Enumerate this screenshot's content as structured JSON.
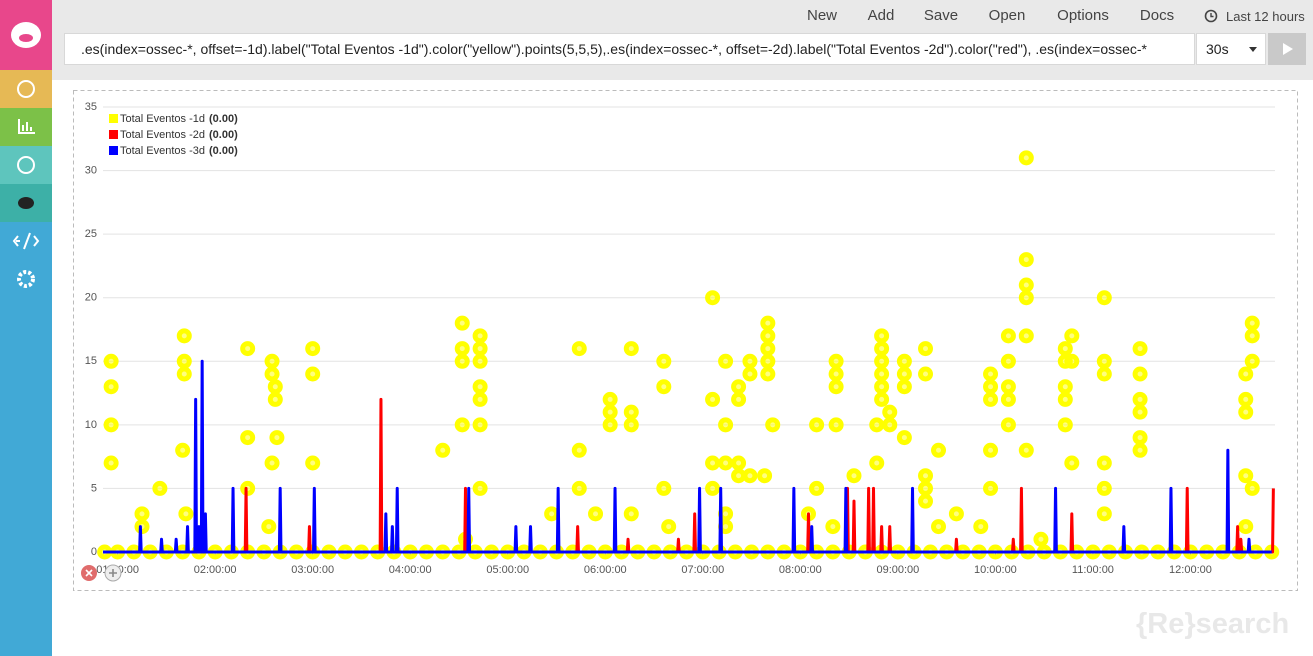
{
  "header": {
    "menu": [
      "New",
      "Add",
      "Save",
      "Open",
      "Options",
      "Docs"
    ],
    "time_range": "Last 12 hours"
  },
  "query": {
    "text": ".es(index=ossec-*, offset=-1d).label(\"Total Eventos -1d\").color(\"yellow\").points(5,5,5),.es(index=ossec-*, offset=-2d).label(\"Total Eventos -2d\").color(\"red\"), .es(index=ossec-*",
    "interval": "30s"
  },
  "watermark": "{Re}search",
  "chart_data": {
    "type": "line",
    "xlim": [
      "00:51:00",
      "12:52:00"
    ],
    "xticks": [
      "01:00:00",
      "02:00:00",
      "03:00:00",
      "04:00:00",
      "05:00:00",
      "06:00:00",
      "07:00:00",
      "08:00:00",
      "09:00:00",
      "10:00:00",
      "11:00:00",
      "12:00:00"
    ],
    "ylim": [
      0,
      35
    ],
    "yticks": [
      0,
      5,
      10,
      15,
      20,
      25,
      30,
      35
    ],
    "grid": true,
    "legend": "top-left",
    "series": [
      {
        "name": "Total Eventos -1d",
        "legend_value": "(0.00)",
        "color": "#ffff00",
        "style": "points",
        "x": [
          "00:56:00",
          "00:56:00",
          "00:56:00",
          "00:56:00",
          "01:15:00",
          "01:15:00",
          "01:26:00",
          "01:40:00",
          "01:41:00",
          "01:41:00",
          "01:41:00",
          "01:42:00",
          "02:20:00",
          "02:20:00",
          "02:20:00",
          "02:33:00",
          "02:35:00",
          "02:35:00",
          "02:35:00",
          "02:37:00",
          "02:37:00",
          "02:38:00",
          "03:00:00",
          "03:00:00",
          "03:00:00",
          "04:20:00",
          "04:32:00",
          "04:32:00",
          "04:32:00",
          "04:32:00",
          "04:34:00",
          "04:43:00",
          "04:43:00",
          "04:43:00",
          "04:43:00",
          "04:43:00",
          "04:43:00",
          "04:43:00",
          "05:27:00",
          "05:44:00",
          "05:44:00",
          "05:44:00",
          "05:54:00",
          "06:03:00",
          "06:03:00",
          "06:03:00",
          "06:16:00",
          "06:16:00",
          "06:16:00",
          "06:16:00",
          "06:36:00",
          "06:36:00",
          "06:36:00",
          "06:39:00",
          "07:06:00",
          "07:06:00",
          "07:06:00",
          "07:06:00",
          "07:14:00",
          "07:14:00",
          "07:14:00",
          "07:14:00",
          "07:14:00",
          "07:22:00",
          "07:22:00",
          "07:22:00",
          "07:22:00",
          "07:29:00",
          "07:29:00",
          "07:29:00",
          "07:38:00",
          "07:40:00",
          "07:40:00",
          "07:40:00",
          "07:40:00",
          "07:40:00",
          "07:43:00",
          "08:05:00",
          "08:10:00",
          "08:10:00",
          "08:20:00",
          "08:22:00",
          "08:22:00",
          "08:22:00",
          "08:22:00",
          "08:33:00",
          "08:47:00",
          "08:47:00",
          "08:50:00",
          "08:50:00",
          "08:50:00",
          "08:50:00",
          "08:50:00",
          "08:50:00",
          "08:55:00",
          "08:55:00",
          "09:04:00",
          "09:04:00",
          "09:04:00",
          "09:04:00",
          "09:17:00",
          "09:17:00",
          "09:17:00",
          "09:17:00",
          "09:17:00",
          "09:25:00",
          "09:25:00",
          "09:36:00",
          "09:51:00",
          "09:57:00",
          "09:57:00",
          "09:57:00",
          "09:57:00",
          "09:57:00",
          "10:08:00",
          "10:08:00",
          "10:08:00",
          "10:08:00",
          "10:08:00",
          "10:19:00",
          "10:19:00",
          "10:19:00",
          "10:19:00",
          "10:19:00",
          "10:19:00",
          "10:28:00",
          "10:43:00",
          "10:43:00",
          "10:43:00",
          "10:43:00",
          "10:43:00",
          "10:47:00",
          "10:47:00",
          "10:47:00",
          "11:07:00",
          "11:07:00",
          "11:07:00",
          "11:07:00",
          "11:07:00",
          "11:07:00",
          "11:29:00",
          "11:29:00",
          "11:29:00",
          "11:29:00",
          "11:29:00",
          "11:29:00",
          "12:34:00",
          "12:34:00",
          "12:34:00",
          "12:34:00",
          "12:34:00",
          "12:38:00",
          "12:38:00",
          "12:38:00",
          "12:38:00",
          "00:52:00",
          "01:00:00",
          "01:10:00",
          "01:20:00",
          "01:30:00",
          "01:40:00",
          "01:50:00",
          "02:00:00",
          "02:10:00",
          "02:20:00",
          "02:30:00",
          "02:40:00",
          "02:50:00",
          "03:00:00",
          "03:10:00",
          "03:20:00",
          "03:30:00",
          "03:40:00",
          "03:50:00",
          "04:00:00",
          "04:10:00",
          "04:20:00",
          "04:30:00",
          "04:40:00",
          "04:50:00",
          "05:00:00",
          "05:10:00",
          "05:20:00",
          "05:30:00",
          "05:40:00",
          "05:50:00",
          "06:00:00",
          "06:10:00",
          "06:20:00",
          "06:30:00",
          "06:40:00",
          "06:50:00",
          "07:00:00",
          "07:10:00",
          "07:20:00",
          "07:30:00",
          "07:40:00",
          "07:50:00",
          "08:00:00",
          "08:10:00",
          "08:20:00",
          "08:30:00",
          "08:40:00",
          "08:50:00",
          "09:00:00",
          "09:10:00",
          "09:20:00",
          "09:30:00",
          "09:40:00",
          "09:50:00",
          "10:00:00",
          "10:10:00",
          "10:20:00",
          "10:30:00",
          "10:40:00",
          "10:50:00",
          "11:00:00",
          "11:10:00",
          "11:20:00",
          "11:30:00",
          "11:40:00",
          "11:50:00",
          "12:00:00",
          "12:10:00",
          "12:20:00",
          "12:30:00",
          "12:40:00",
          "12:50:00"
        ],
        "values": [
          15,
          13,
          10,
          7,
          3,
          2,
          5,
          8,
          17,
          15,
          14,
          3,
          16,
          9,
          5,
          2,
          15,
          14,
          7,
          13,
          12,
          9,
          16,
          14,
          7,
          8,
          18,
          16,
          15,
          10,
          1,
          17,
          16,
          15,
          13,
          12,
          10,
          5,
          3,
          16,
          8,
          5,
          3,
          12,
          11,
          10,
          16,
          11,
          10,
          3,
          15,
          13,
          5,
          2,
          20,
          12,
          7,
          5,
          15,
          10,
          7,
          3,
          2,
          13,
          12,
          7,
          6,
          15,
          14,
          6,
          6,
          18,
          17,
          16,
          15,
          14,
          10,
          3,
          10,
          5,
          2,
          15,
          14,
          13,
          10,
          6,
          10,
          7,
          17,
          16,
          15,
          14,
          13,
          12,
          11,
          10,
          15,
          14,
          13,
          9,
          16,
          14,
          6,
          5,
          4,
          8,
          2,
          3,
          2,
          14,
          13,
          12,
          8,
          5,
          17,
          15,
          13,
          12,
          10,
          31,
          23,
          21,
          20,
          17,
          8,
          1,
          16,
          15,
          13,
          12,
          10,
          17,
          15,
          7,
          20,
          15,
          14,
          7,
          5,
          3,
          16,
          14,
          12,
          11,
          9,
          8,
          14,
          12,
          11,
          6,
          2,
          18,
          17,
          15,
          5,
          0,
          0,
          0,
          0,
          0,
          0,
          0,
          0,
          0,
          0,
          0,
          0,
          0,
          0,
          0,
          0,
          0,
          0,
          0,
          0,
          0,
          0,
          0,
          0,
          0,
          0,
          0,
          0,
          0,
          0,
          0,
          0,
          0,
          0,
          0,
          0,
          0,
          0,
          0,
          0,
          0,
          0,
          0,
          0,
          0,
          0,
          0,
          0,
          0,
          0,
          0,
          0,
          0,
          0,
          0,
          0,
          0,
          0,
          0,
          0,
          0,
          0,
          0,
          0,
          0,
          0,
          0,
          0,
          0,
          0,
          0,
          0,
          0
        ]
      },
      {
        "name": "Total Eventos -2d",
        "legend_value": "(0.00)",
        "color": "#ff0000",
        "style": "line",
        "x": [
          "00:51:00",
          "02:18:30",
          "02:19:00",
          "02:19:30",
          "02:57:30",
          "02:58:00",
          "02:58:30",
          "03:41:30",
          "03:42:00",
          "03:42:30",
          "04:33:30",
          "04:34:00",
          "04:34:30",
          "05:42:30",
          "05:43:00",
          "05:43:30",
          "06:13:30",
          "06:14:00",
          "06:14:30",
          "06:44:30",
          "06:45:00",
          "06:45:30",
          "06:54:30",
          "06:55:00",
          "06:55:30",
          "08:04:30",
          "08:05:00",
          "08:05:30",
          "08:28:30",
          "08:29:00",
          "08:29:30",
          "08:32:30",
          "08:33:00",
          "08:33:30",
          "08:41:30",
          "08:42:00",
          "08:42:30",
          "08:44:30",
          "08:45:00",
          "08:45:30",
          "08:49:30",
          "08:50:00",
          "08:50:30",
          "08:54:30",
          "08:55:00",
          "08:55:30",
          "09:35:30",
          "09:36:00",
          "09:36:30",
          "10:10:30",
          "10:11:00",
          "10:11:30",
          "10:15:30",
          "10:16:00",
          "10:16:30",
          "10:46:30",
          "10:47:00",
          "10:47:30",
          "11:57:30",
          "11:58:00",
          "11:58:30",
          "12:28:30",
          "12:29:00",
          "12:29:30",
          "12:30:30",
          "12:31:00",
          "12:31:30",
          "12:50:30",
          "12:51:00"
        ],
        "values": [
          0,
          0,
          5,
          0,
          0,
          2,
          0,
          0,
          12,
          0,
          0,
          5,
          0,
          0,
          2,
          0,
          0,
          1,
          0,
          0,
          1,
          0,
          0,
          3,
          0,
          0,
          3,
          0,
          0,
          5,
          0,
          0,
          4,
          0,
          0,
          5,
          0,
          0,
          5,
          0,
          0,
          2,
          0,
          0,
          2,
          0,
          0,
          1,
          0,
          0,
          1,
          0,
          0,
          5,
          0,
          0,
          3,
          0,
          0,
          5,
          0,
          0,
          2,
          0,
          0,
          1,
          0,
          0,
          5
        ]
      },
      {
        "name": "Total Eventos -3d",
        "legend_value": "(0.00)",
        "color": "#0000ff",
        "style": "line",
        "x": [
          "00:51:00",
          "01:13:30",
          "01:14:00",
          "01:14:30",
          "01:26:30",
          "01:27:00",
          "01:27:30",
          "01:35:30",
          "01:36:00",
          "01:36:30",
          "01:42:30",
          "01:43:00",
          "01:43:30",
          "01:47:30",
          "01:48:00",
          "01:48:30",
          "01:49:30",
          "01:50:00",
          "01:50:30",
          "01:51:30",
          "01:52:00",
          "01:52:30",
          "01:53:30",
          "01:54:00",
          "01:54:30",
          "02:10:30",
          "02:11:00",
          "02:11:30",
          "02:39:30",
          "02:40:00",
          "02:40:30",
          "03:00:30",
          "03:01:00",
          "03:01:30",
          "03:44:30",
          "03:45:00",
          "03:45:30",
          "03:48:30",
          "03:49:00",
          "03:49:30",
          "03:51:30",
          "03:52:00",
          "03:52:30",
          "04:35:30",
          "04:36:00",
          "04:36:30",
          "05:04:30",
          "05:05:00",
          "05:05:30",
          "05:13:30",
          "05:14:00",
          "05:14:30",
          "05:30:30",
          "05:31:00",
          "05:31:30",
          "06:05:30",
          "06:06:00",
          "06:06:30",
          "06:57:30",
          "06:58:00",
          "06:58:30",
          "07:10:30",
          "07:11:00",
          "07:11:30",
          "07:55:30",
          "07:56:00",
          "07:56:30",
          "08:06:30",
          "08:07:00",
          "08:07:30",
          "08:27:30",
          "08:28:00",
          "08:28:30",
          "09:08:30",
          "09:09:00",
          "09:09:30",
          "10:36:30",
          "10:37:00",
          "10:37:30",
          "11:18:30",
          "11:19:00",
          "11:19:30",
          "11:47:30",
          "11:48:00",
          "11:48:30",
          "12:22:30",
          "12:23:00",
          "12:23:30",
          "12:35:30",
          "12:36:00",
          "12:36:30",
          "12:50:00"
        ],
        "values": [
          0,
          0,
          2,
          0,
          0,
          1,
          0,
          0,
          1,
          0,
          0,
          2,
          0,
          0,
          12,
          0,
          0,
          2,
          0,
          0,
          15,
          0,
          0,
          3,
          0,
          0,
          5,
          0,
          0,
          5,
          0,
          0,
          5,
          0,
          0,
          3,
          0,
          0,
          2,
          0,
          0,
          5,
          0,
          0,
          5,
          0,
          0,
          2,
          0,
          0,
          2,
          0,
          0,
          5,
          0,
          0,
          5,
          0,
          0,
          5,
          0,
          0,
          5,
          0,
          0,
          5,
          0,
          0,
          2,
          0,
          0,
          5,
          0,
          0,
          5,
          0,
          0,
          5,
          0,
          0,
          2,
          0,
          0,
          5,
          0,
          0,
          8,
          0,
          0,
          1,
          0,
          0
        ]
      }
    ]
  }
}
